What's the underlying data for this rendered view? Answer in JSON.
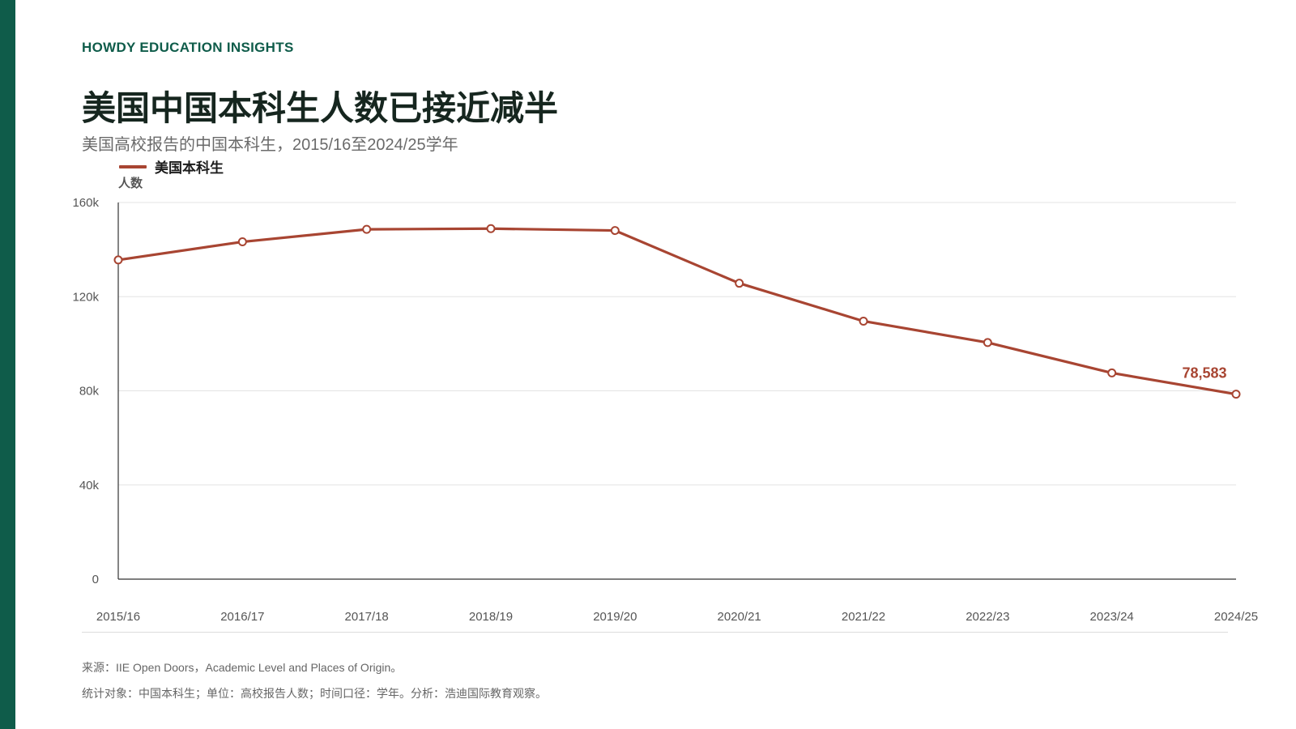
{
  "brand": "HOWDY EDUCATION INSIGHTS",
  "title": "美国中国本科生人数已接近减半",
  "subtitle": "美国高校报告的中国本科生，2015/16至2024/25学年",
  "colors": {
    "accent": "#a84532",
    "brand_green": "#0f5c4a",
    "grid": "#e3e3e3",
    "axis": "#333333"
  },
  "chart_data": {
    "type": "line",
    "categories": [
      "2015/16",
      "2016/17",
      "2017/18",
      "2018/19",
      "2019/20",
      "2020/21",
      "2021/22",
      "2022/23",
      "2023/24",
      "2024/25"
    ],
    "series": [
      {
        "name": "美国本科生",
        "values": [
          135600,
          143300,
          148600,
          148900,
          148100,
          125700,
          109600,
          100500,
          87600,
          78583
        ]
      }
    ],
    "ylabel": "人数",
    "ylim": [
      0,
      160000
    ],
    "yticks": [
      {
        "value": 0,
        "label": "0"
      },
      {
        "value": 40000,
        "label": "40k"
      },
      {
        "value": 80000,
        "label": "80k"
      },
      {
        "value": 120000,
        "label": "120k"
      },
      {
        "value": 160000,
        "label": "160k"
      }
    ],
    "grid": true,
    "legend": "top-left",
    "data_labels": [
      {
        "category": "2024/25",
        "value": 78583,
        "label": "78,583"
      }
    ]
  },
  "footer": {
    "source": "来源：IIE Open Doors，Academic Level and Places of Origin。",
    "note": "统计对象：中国本科生；单位：高校报告人数；时间口径：学年。分析：浩迪国际教育观察。"
  }
}
